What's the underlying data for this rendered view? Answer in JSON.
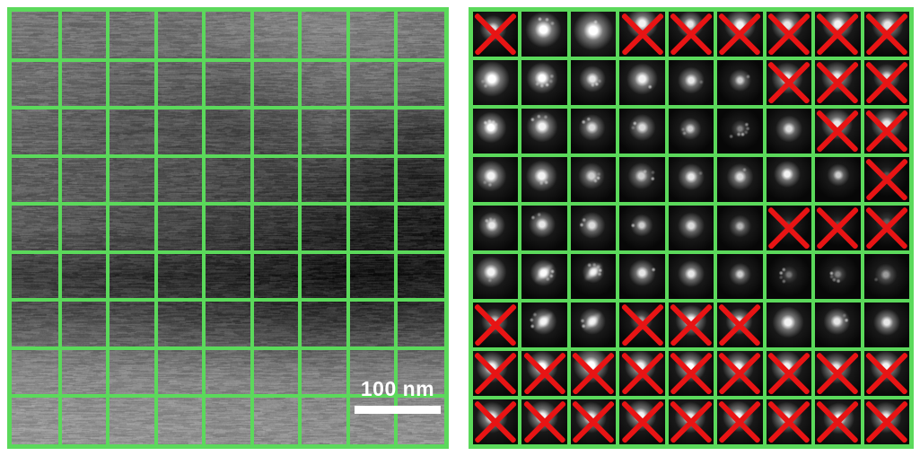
{
  "figure": {
    "description": "Two-panel scientific figure: left is a STEM survey image with a 9x9 green sampling grid and scale bar; right is the corresponding 9x9 grid of electron diffraction patterns, with rejected patterns crossed out in red."
  },
  "colors": {
    "grid_green": "#5bd95b",
    "cross_red": "#e81414",
    "scale_bar_white": "#ffffff",
    "page_background": "#ffffff",
    "diffraction_background": "#070707"
  },
  "left_panel": {
    "grid": {
      "rows": 9,
      "cols": 9
    },
    "scale_bar": {
      "label": "100 nm"
    },
    "brightness_map_9x9": [
      [
        118,
        115,
        112,
        113,
        120,
        126,
        130,
        126,
        120
      ],
      [
        112,
        106,
        98,
        96,
        92,
        100,
        110,
        112,
        105
      ],
      [
        100,
        92,
        86,
        80,
        74,
        78,
        90,
        75,
        62
      ],
      [
        96,
        92,
        88,
        84,
        78,
        70,
        62,
        50,
        42
      ],
      [
        92,
        86,
        80,
        74,
        64,
        54,
        44,
        38,
        32
      ],
      [
        62,
        56,
        50,
        46,
        40,
        34,
        28,
        24,
        28
      ],
      [
        92,
        88,
        82,
        76,
        70,
        64,
        60,
        64,
        68
      ],
      [
        138,
        134,
        132,
        130,
        128,
        126,
        126,
        128,
        130
      ],
      [
        150,
        148,
        146,
        146,
        144,
        144,
        142,
        144,
        146
      ]
    ]
  },
  "right_panel": {
    "grid": {
      "rows": 9,
      "cols": 9
    },
    "crossed_count": 38,
    "cell_format": [
      "crossed",
      "spot_x_pct",
      "spot_y_pct",
      "spot_brightness",
      "spot_core_radius_px",
      "satellite_count",
      "streaked"
    ],
    "rows": [
      [
        [
          1,
          45,
          38,
          0.85,
          3,
          0,
          0
        ],
        [
          0,
          48,
          40,
          1,
          4,
          3,
          0
        ],
        [
          0,
          50,
          42,
          1,
          4.5,
          1,
          0
        ],
        [
          1,
          50,
          26,
          0.95,
          3.5,
          0,
          0
        ],
        [
          1,
          48,
          28,
          0.9,
          3,
          0,
          0
        ],
        [
          1,
          50,
          30,
          0.95,
          3.5,
          0,
          0
        ],
        [
          1,
          46,
          30,
          0.9,
          3.5,
          0,
          0
        ],
        [
          1,
          50,
          28,
          0.95,
          3.5,
          0,
          0
        ],
        [
          1,
          52,
          30,
          0.9,
          3.5,
          0,
          0
        ]
      ],
      [
        [
          0,
          42,
          42,
          1,
          4,
          2,
          0
        ],
        [
          0,
          45,
          40,
          1,
          3.5,
          5,
          0
        ],
        [
          0,
          48,
          42,
          0.9,
          3,
          3,
          0
        ],
        [
          0,
          50,
          42,
          0.95,
          3.5,
          1,
          0
        ],
        [
          0,
          50,
          45,
          0.9,
          3,
          1,
          0
        ],
        [
          0,
          50,
          45,
          0.8,
          2.5,
          1,
          0
        ],
        [
          1,
          46,
          40,
          0.9,
          3.5,
          0,
          0
        ],
        [
          1,
          48,
          38,
          0.9,
          3.5,
          0,
          0
        ],
        [
          1,
          50,
          38,
          0.85,
          3,
          0,
          0
        ]
      ],
      [
        [
          0,
          40,
          42,
          1,
          3.5,
          4,
          0
        ],
        [
          0,
          45,
          40,
          0.95,
          3.5,
          3,
          0
        ],
        [
          0,
          47,
          42,
          0.85,
          3,
          2,
          0
        ],
        [
          0,
          50,
          42,
          0.85,
          3,
          2,
          0
        ],
        [
          0,
          48,
          45,
          0.8,
          2.5,
          2,
          0
        ],
        [
          0,
          50,
          45,
          0.5,
          2,
          6,
          0
        ],
        [
          0,
          50,
          45,
          0.85,
          3,
          0,
          0
        ],
        [
          1,
          48,
          35,
          0.9,
          3.5,
          0,
          0
        ],
        [
          1,
          50,
          35,
          0.9,
          3.5,
          0,
          0
        ]
      ],
      [
        [
          0,
          40,
          42,
          0.95,
          3.5,
          2,
          0
        ],
        [
          0,
          44,
          42,
          0.95,
          3.5,
          2,
          0
        ],
        [
          0,
          46,
          42,
          0.8,
          3,
          3,
          0
        ],
        [
          0,
          48,
          42,
          0.8,
          3,
          3,
          0
        ],
        [
          0,
          50,
          44,
          0.9,
          3,
          1,
          0
        ],
        [
          0,
          50,
          44,
          0.85,
          3,
          1,
          0
        ],
        [
          0,
          46,
          38,
          0.95,
          3,
          0,
          0
        ],
        [
          0,
          51,
          40,
          0.8,
          2.5,
          0,
          0
        ],
        [
          1,
          50,
          40,
          0.3,
          2,
          0,
          0
        ]
      ],
      [
        [
          0,
          42,
          44,
          0.9,
          3,
          3,
          0
        ],
        [
          0,
          45,
          42,
          0.9,
          3,
          2,
          0
        ],
        [
          0,
          47,
          44,
          0.85,
          3,
          2,
          0
        ],
        [
          0,
          49,
          44,
          0.8,
          2.5,
          1,
          0
        ],
        [
          0,
          50,
          45,
          0.85,
          3,
          0,
          0
        ],
        [
          0,
          50,
          46,
          0.7,
          2.5,
          0,
          0
        ],
        [
          1,
          48,
          42,
          0.3,
          2,
          0,
          0
        ],
        [
          1,
          50,
          42,
          0.3,
          2,
          0,
          0
        ],
        [
          1,
          50,
          38,
          0.35,
          2.5,
          0,
          0
        ]
      ],
      [
        [
          0,
          40,
          40,
          0.95,
          3.5,
          1,
          0
        ],
        [
          0,
          48,
          42,
          0.95,
          3,
          3,
          1
        ],
        [
          0,
          50,
          40,
          0.85,
          2.5,
          5,
          1
        ],
        [
          0,
          50,
          42,
          0.9,
          3,
          1,
          0
        ],
        [
          0,
          50,
          44,
          0.9,
          3,
          0,
          0
        ],
        [
          0,
          50,
          45,
          0.8,
          2.5,
          0,
          0
        ],
        [
          0,
          50,
          46,
          0.45,
          2,
          4,
          0
        ],
        [
          0,
          50,
          45,
          0.5,
          2,
          4,
          0
        ],
        [
          0,
          48,
          46,
          0.6,
          2.5,
          1,
          0
        ]
      ],
      [
        [
          1,
          48,
          42,
          0.75,
          3,
          0,
          0
        ],
        [
          0,
          48,
          42,
          0.9,
          3,
          3,
          1
        ],
        [
          0,
          48,
          42,
          0.85,
          3,
          2,
          1
        ],
        [
          1,
          48,
          40,
          0.6,
          2.5,
          0,
          0
        ],
        [
          1,
          50,
          40,
          0.95,
          3.5,
          0,
          0
        ],
        [
          1,
          48,
          42,
          0.9,
          3,
          0,
          0
        ],
        [
          0,
          48,
          44,
          0.95,
          3.5,
          0,
          0
        ],
        [
          0,
          48,
          42,
          0.9,
          3,
          2,
          0
        ],
        [
          0,
          50,
          44,
          0.9,
          3,
          0,
          0
        ]
      ],
      [
        [
          1,
          42,
          36,
          0.95,
          3.5,
          0,
          0
        ],
        [
          1,
          45,
          35,
          1,
          3.5,
          0,
          0
        ],
        [
          1,
          45,
          32,
          1,
          4,
          0,
          0
        ],
        [
          1,
          46,
          34,
          0.95,
          3.5,
          0,
          0
        ],
        [
          1,
          48,
          35,
          1,
          3.5,
          0,
          0
        ],
        [
          1,
          46,
          36,
          0.95,
          3.5,
          0,
          0
        ],
        [
          1,
          45,
          35,
          0.95,
          3.5,
          0,
          0
        ],
        [
          1,
          46,
          38,
          0.9,
          3.5,
          0,
          0
        ],
        [
          1,
          48,
          35,
          0.95,
          3.5,
          0,
          0
        ]
      ],
      [
        [
          1,
          42,
          40,
          0.9,
          3.5,
          0,
          0
        ],
        [
          1,
          46,
          38,
          0.95,
          3.5,
          0,
          0
        ],
        [
          1,
          45,
          40,
          0.9,
          3.5,
          0,
          0
        ],
        [
          1,
          47,
          36,
          0.95,
          3.5,
          0,
          0
        ],
        [
          1,
          48,
          40,
          0.9,
          3.5,
          0,
          0
        ],
        [
          1,
          46,
          38,
          0.95,
          3.5,
          0,
          0
        ],
        [
          1,
          45,
          40,
          0.9,
          3.5,
          0,
          0
        ],
        [
          1,
          52,
          42,
          0.95,
          3.5,
          1,
          0
        ],
        [
          1,
          48,
          40,
          0.9,
          3.5,
          0,
          0
        ]
      ]
    ]
  }
}
